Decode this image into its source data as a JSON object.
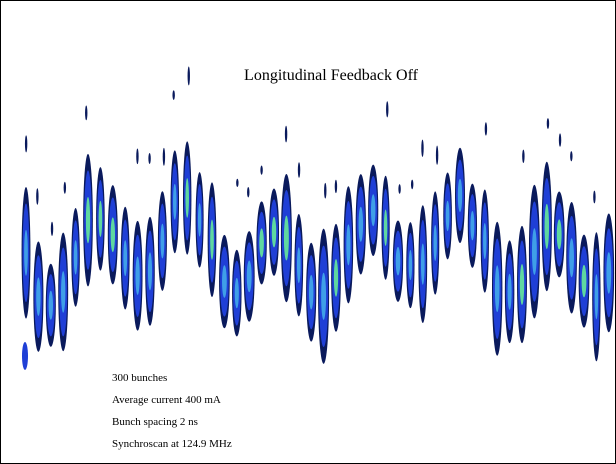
{
  "title": "Longitudinal Feedback Off",
  "annotations": [
    "300 bunches",
    "Average current 400 mA",
    "Bunch spacing 2 ns",
    "Synchroscan at 124.9 MHz"
  ]
}
